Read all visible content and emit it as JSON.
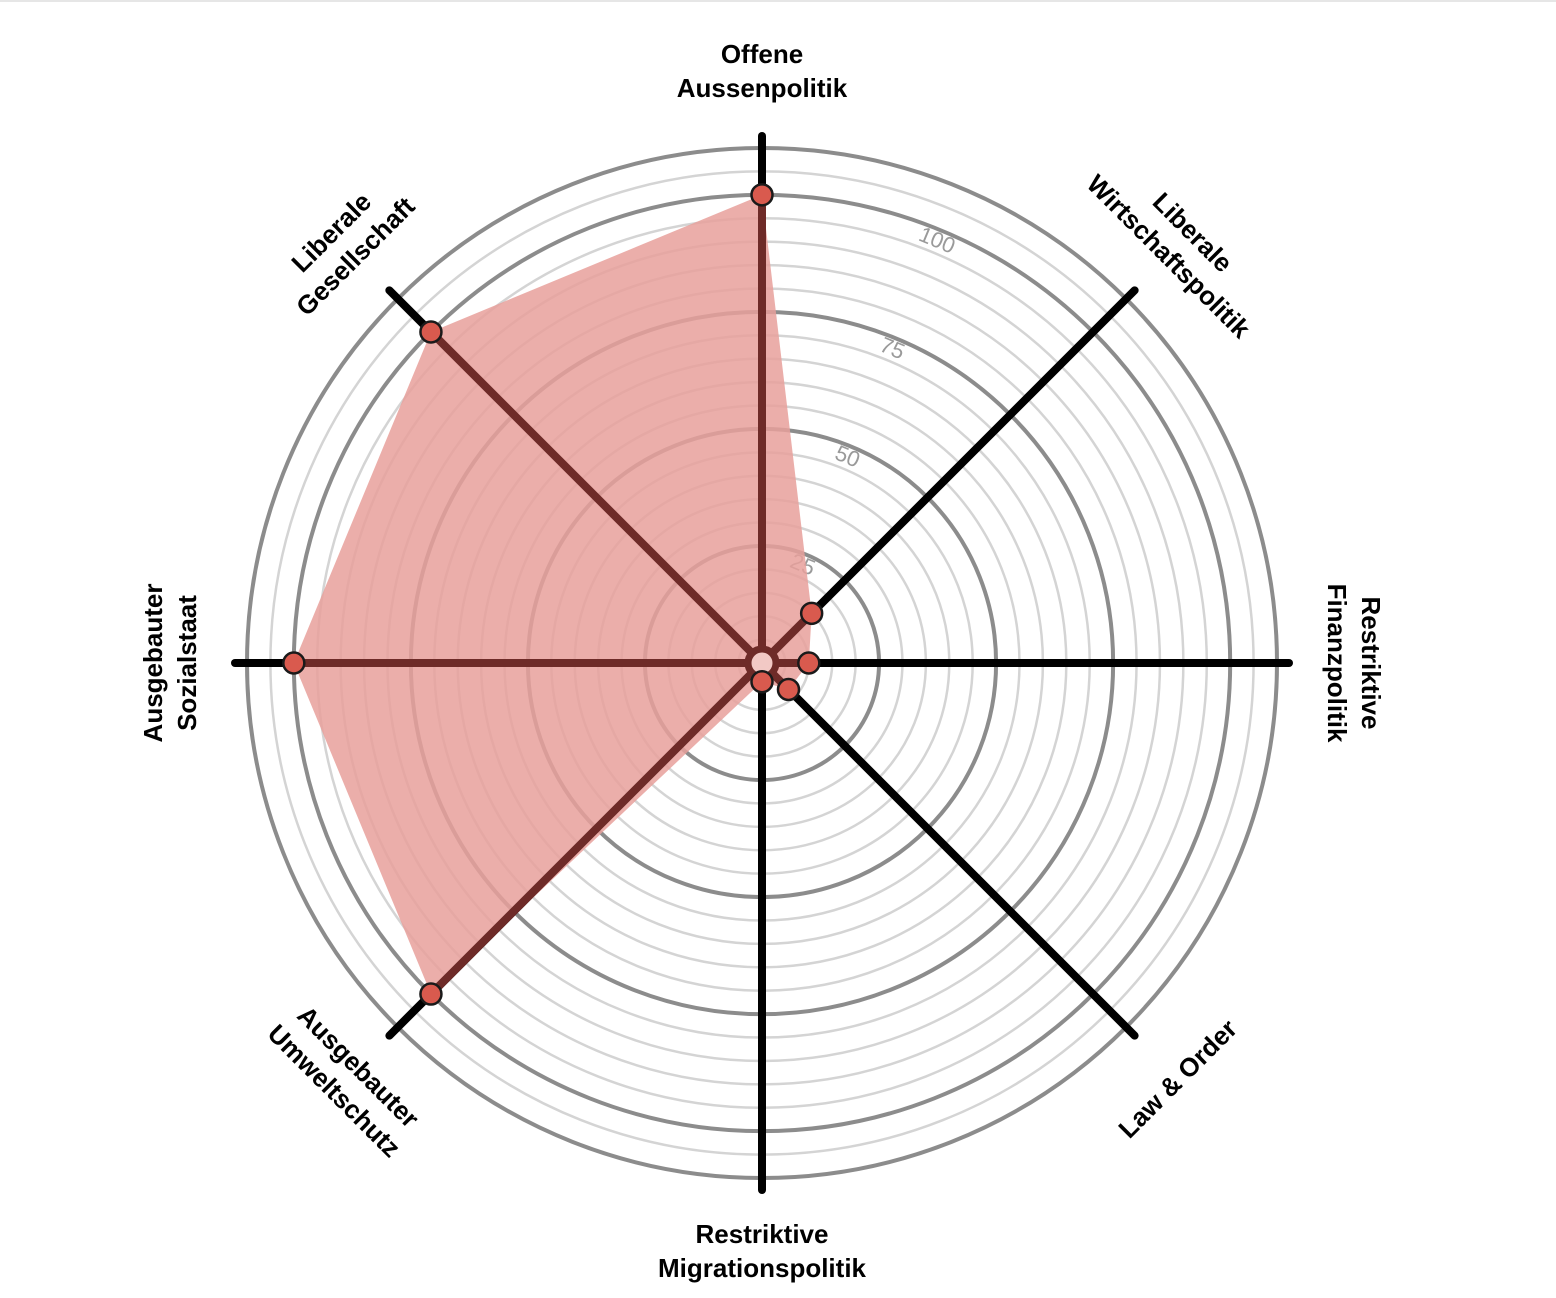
{
  "chart_data": {
    "type": "radar",
    "title": "",
    "rmax": 110,
    "ring_step": 5,
    "major_ticks": [
      25,
      50,
      75,
      100
    ],
    "axes": [
      {
        "lines": [
          "Offene",
          "Aussenpolitik"
        ],
        "value": 100
      },
      {
        "lines": [
          "Liberale",
          "Wirtschaftspolitik"
        ],
        "value": 15
      },
      {
        "lines": [
          "Restriktive",
          "Finanzpolitik"
        ],
        "value": 10
      },
      {
        "lines": [
          "Law & Order"
        ],
        "value": 8
      },
      {
        "lines": [
          "Restriktive",
          "Migrationspolitik"
        ],
        "value": 4
      },
      {
        "lines": [
          "Ausgebauter",
          "Umweltschutz"
        ],
        "value": 100
      },
      {
        "lines": [
          "Ausgebauter",
          "Sozialstaat"
        ],
        "value": 100
      },
      {
        "lines": [
          "Liberale",
          "Gesellschaft"
        ],
        "value": 100
      }
    ],
    "colors": {
      "fill": "#e8a09b",
      "marker": "#d95a4e",
      "spoke": "#000000",
      "grid_major": "#8c8c8c",
      "grid_minor": "#d4d4d4",
      "center": "#f2c9c5"
    }
  }
}
